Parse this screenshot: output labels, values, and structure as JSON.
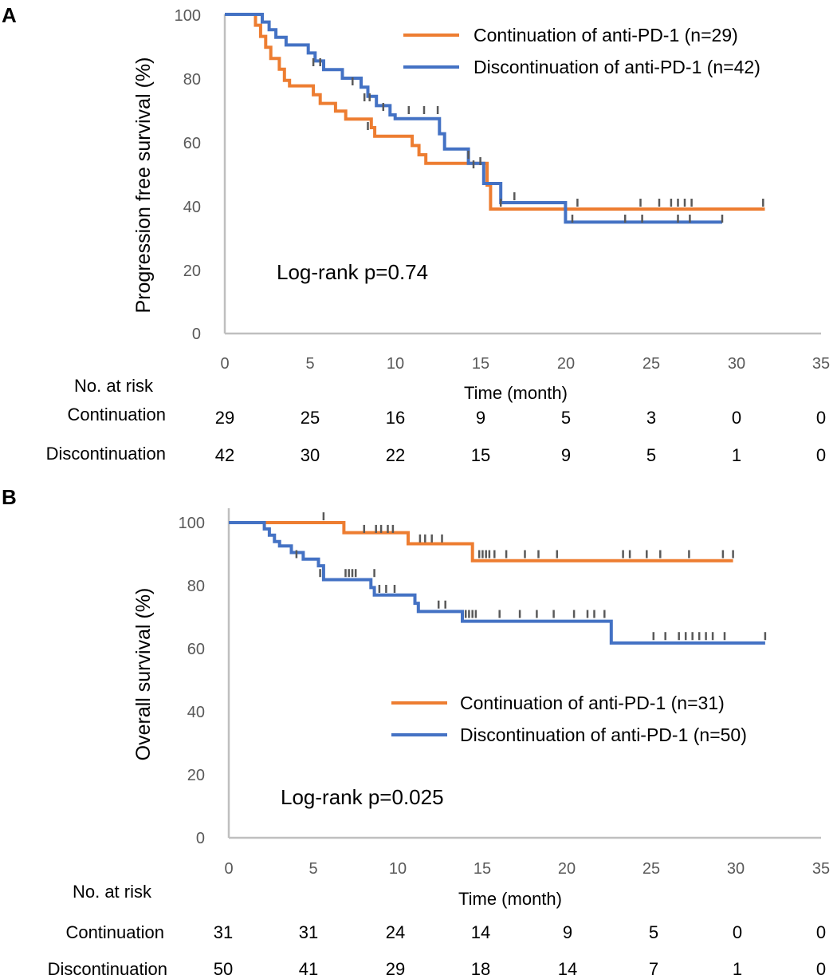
{
  "colors": {
    "continuation": "#ED7D31",
    "discontinuation": "#4472C4",
    "axis": "#BFBFBF",
    "censor": "#595959"
  },
  "chart_data": [
    {
      "type": "line",
      "panel_label": "A",
      "ylabel": "Progression free survival (%)",
      "xlabel": "Time (month)",
      "xlim": [
        0,
        35
      ],
      "ylim": [
        0,
        100
      ],
      "xticks": [
        "0",
        "5",
        "10",
        "15",
        "20",
        "25",
        "30",
        "35"
      ],
      "yticks": [
        "0",
        "20",
        "40",
        "60",
        "80",
        "100"
      ],
      "annotation": "Log-rank p=0.74",
      "series": [
        {
          "name": "Continuation of anti-PD-1 (n=29)",
          "key": "continuation",
          "steps": [
            [
              0,
              100
            ],
            [
              1.8,
              96.6
            ],
            [
              2.1,
              93.1
            ],
            [
              2.4,
              89.7
            ],
            [
              2.7,
              86.2
            ],
            [
              3.2,
              82.8
            ],
            [
              3.5,
              79.3
            ],
            [
              3.8,
              77.6
            ],
            [
              5.2,
              74.8
            ],
            [
              5.6,
              72.1
            ],
            [
              6.5,
              69.7
            ],
            [
              7.1,
              67.2
            ],
            [
              8.6,
              64.5
            ],
            [
              8.8,
              61.8
            ],
            [
              11.0,
              58.9
            ],
            [
              11.4,
              56.0
            ],
            [
              11.8,
              53.3
            ],
            [
              15.4,
              46.5
            ],
            [
              15.6,
              39.0
            ],
            [
              31.7,
              39.0
            ]
          ],
          "censors": [
            [
              8.4,
              65
            ],
            [
              14.6,
              53
            ],
            [
              16.2,
              41
            ],
            [
              31.6,
              41
            ]
          ]
        },
        {
          "name": "Discontinuation of anti-PD-1 (n=42)",
          "key": "discontinuation",
          "steps": [
            [
              0,
              100
            ],
            [
              2.2,
              97.6
            ],
            [
              2.6,
              95.2
            ],
            [
              3.0,
              92.8
            ],
            [
              3.6,
              90.4
            ],
            [
              4.9,
              87.9
            ],
            [
              5.3,
              85.4
            ],
            [
              5.8,
              82.7
            ],
            [
              6.9,
              80.0
            ],
            [
              8.0,
              77.2
            ],
            [
              8.4,
              74.3
            ],
            [
              8.9,
              71.4
            ],
            [
              9.7,
              68.5
            ],
            [
              10.0,
              67.3
            ],
            [
              12.6,
              62.6
            ],
            [
              12.9,
              57.8
            ],
            [
              14.3,
              53.3
            ],
            [
              15.2,
              47.0
            ],
            [
              16.2,
              41.0
            ],
            [
              20.0,
              34.9
            ],
            [
              29.2,
              34.9
            ]
          ],
          "censors": [
            [
              5.2,
              85
            ],
            [
              5.6,
              85
            ],
            [
              7.5,
              79
            ],
            [
              8.2,
              74
            ],
            [
              8.5,
              74
            ],
            [
              9.3,
              71
            ],
            [
              10.8,
              70
            ],
            [
              11.7,
              70
            ],
            [
              12.5,
              70
            ],
            [
              14.3,
              56
            ],
            [
              15.0,
              54
            ],
            [
              20.4,
              36
            ],
            [
              23.5,
              36
            ],
            [
              24.5,
              36
            ],
            [
              26.6,
              36
            ],
            [
              27.3,
              36
            ],
            [
              29.2,
              36
            ],
            [
              17.0,
              43
            ],
            [
              20.7,
              41
            ],
            [
              24.4,
              41
            ],
            [
              25.5,
              41
            ],
            [
              26.2,
              41
            ],
            [
              26.6,
              41
            ],
            [
              27.0,
              41
            ],
            [
              27.4,
              41
            ]
          ]
        }
      ],
      "risk_table": {
        "title": "No. at risk",
        "rows": [
          {
            "label": "Continuation",
            "values": [
              "29",
              "25",
              "16",
              "9",
              "5",
              "3",
              "0",
              "0"
            ]
          },
          {
            "label": "Discontinuation",
            "values": [
              "42",
              "30",
              "22",
              "15",
              "9",
              "5",
              "1",
              "0"
            ]
          }
        ]
      }
    },
    {
      "type": "line",
      "panel_label": "B",
      "ylabel": "Overall survival (%)",
      "xlabel": "Time (month)",
      "xlim": [
        0,
        35
      ],
      "ylim": [
        0,
        100
      ],
      "xticks": [
        "0",
        "5",
        "10",
        "15",
        "20",
        "25",
        "30",
        "35"
      ],
      "yticks": [
        "0",
        "20",
        "40",
        "60",
        "80",
        "100"
      ],
      "annotation": "Log-rank p=0.025",
      "series": [
        {
          "name": "Continuation of anti-PD-1 (n=31)",
          "key": "continuation",
          "steps": [
            [
              0,
              100
            ],
            [
              6.8,
              96.8
            ],
            [
              10.6,
              93.3
            ],
            [
              14.4,
              87.9
            ],
            [
              29.8,
              87.9
            ]
          ],
          "censors": [
            [
              5.6,
              102
            ],
            [
              8.0,
              98
            ],
            [
              8.7,
              98
            ],
            [
              9.0,
              98
            ],
            [
              9.4,
              98
            ],
            [
              9.7,
              98
            ],
            [
              11.3,
              95
            ],
            [
              11.6,
              95
            ],
            [
              12.0,
              95
            ],
            [
              12.6,
              95
            ],
            [
              14.8,
              90
            ],
            [
              15.0,
              90
            ],
            [
              15.2,
              90
            ],
            [
              15.4,
              90
            ],
            [
              15.7,
              90
            ],
            [
              16.4,
              90
            ],
            [
              17.5,
              90
            ],
            [
              18.3,
              90
            ],
            [
              19.4,
              90
            ],
            [
              23.3,
              90
            ],
            [
              23.7,
              90
            ],
            [
              24.7,
              90
            ],
            [
              25.5,
              90
            ],
            [
              27.2,
              90
            ],
            [
              29.2,
              90
            ],
            [
              29.8,
              90
            ]
          ]
        },
        {
          "name": "Discontinuation of anti-PD-1 (n=50)",
          "key": "discontinuation",
          "steps": [
            [
              0,
              100
            ],
            [
              2.1,
              98
            ],
            [
              2.4,
              96
            ],
            [
              2.7,
              94
            ],
            [
              3.0,
              92.6
            ],
            [
              3.7,
              90.5
            ],
            [
              4.4,
              88.4
            ],
            [
              5.3,
              86.3
            ],
            [
              5.6,
              81.9
            ],
            [
              8.4,
              79.4
            ],
            [
              8.6,
              77
            ],
            [
              11.0,
              74.4
            ],
            [
              11.2,
              71.8
            ],
            [
              13.8,
              68.7
            ],
            [
              22.6,
              61.8
            ],
            [
              31.7,
              61.8
            ]
          ],
          "censors": [
            [
              4.0,
              90
            ],
            [
              5.4,
              84
            ],
            [
              6.9,
              84
            ],
            [
              7.1,
              84
            ],
            [
              7.3,
              84
            ],
            [
              7.5,
              84
            ],
            [
              8.6,
              84
            ],
            [
              8.9,
              79
            ],
            [
              9.3,
              79
            ],
            [
              9.8,
              79
            ],
            [
              12.4,
              74
            ],
            [
              12.8,
              74
            ],
            [
              14.0,
              71
            ],
            [
              14.2,
              71
            ],
            [
              14.4,
              71
            ],
            [
              14.6,
              71
            ],
            [
              16.0,
              71
            ],
            [
              17.2,
              71
            ],
            [
              18.2,
              71
            ],
            [
              19.2,
              71
            ],
            [
              20.4,
              71
            ],
            [
              21.2,
              71
            ],
            [
              21.6,
              71
            ],
            [
              22.2,
              71
            ],
            [
              25.1,
              64
            ],
            [
              25.8,
              64
            ],
            [
              26.6,
              64
            ],
            [
              27.0,
              64
            ],
            [
              27.4,
              64
            ],
            [
              27.8,
              64
            ],
            [
              28.2,
              64
            ],
            [
              28.6,
              64
            ],
            [
              29.3,
              64
            ],
            [
              31.7,
              64
            ]
          ]
        }
      ],
      "risk_table": {
        "title": "No. at risk",
        "rows": [
          {
            "label": "Continuation",
            "values": [
              "31",
              "31",
              "24",
              "14",
              "9",
              "5",
              "0",
              "0"
            ]
          },
          {
            "label": "Discontinuation",
            "values": [
              "50",
              "41",
              "29",
              "18",
              "14",
              "7",
              "1",
              "0"
            ]
          }
        ]
      }
    }
  ]
}
